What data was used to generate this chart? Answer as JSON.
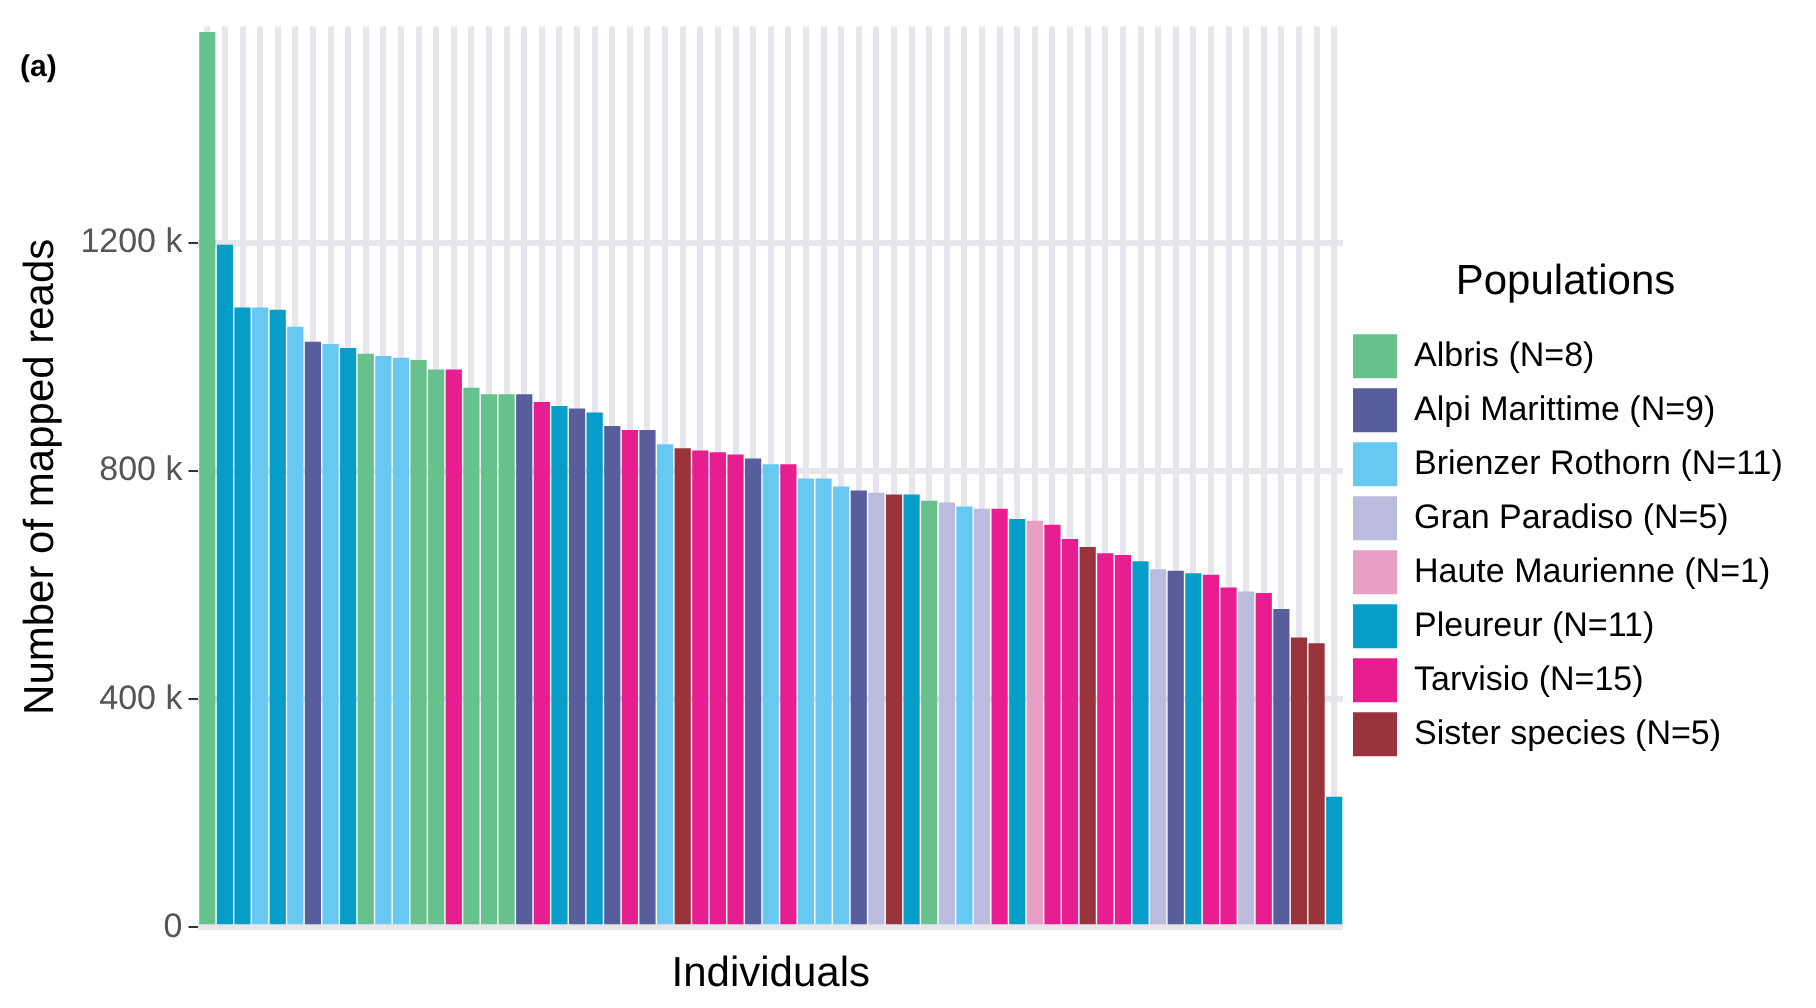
{
  "chart_data": {
    "type": "bar",
    "title": "(a)",
    "xlabel": "Individuals",
    "ylabel": "Number of mapped reads",
    "legend_title": "Populations",
    "legend": "right",
    "grid": true,
    "categories": [
      null,
      null,
      null,
      null,
      null,
      null,
      null,
      null,
      null,
      null,
      null,
      null,
      null,
      null,
      null,
      null,
      null,
      null,
      null,
      null,
      null,
      null,
      null,
      null,
      null,
      null,
      null,
      null,
      null,
      null,
      null,
      null,
      null,
      null,
      null,
      null,
      null,
      null,
      null,
      null,
      null,
      null,
      null,
      null,
      null,
      null,
      null,
      null,
      null,
      null,
      null,
      null,
      null,
      null,
      null,
      null,
      null,
      null,
      null,
      null,
      null,
      null,
      null,
      null,
      null
    ],
    "ylim": [
      0,
      1580
    ],
    "yticks": [
      {
        "value": 0,
        "label": "0"
      },
      {
        "value": 400,
        "label": "400 k"
      },
      {
        "value": 800,
        "label": "800 k"
      },
      {
        "value": 1200,
        "label": "1200 k"
      }
    ],
    "series": [
      {
        "name": "Albris (N=8)",
        "color": "#66c18c",
        "values": [
          1570,
          null,
          null,
          null,
          null,
          null,
          null,
          null,
          null,
          1006,
          null,
          null,
          995,
          978,
          null,
          946,
          935,
          935,
          null,
          null,
          null,
          null,
          null,
          null,
          null,
          null,
          null,
          null,
          null,
          null,
          null,
          null,
          null,
          null,
          null,
          null,
          null,
          null,
          null,
          null,
          null,
          748,
          null,
          null,
          null,
          null,
          null,
          null,
          null,
          null,
          null,
          null,
          null,
          null,
          null,
          null,
          null,
          null,
          null,
          null,
          null,
          null,
          null,
          null,
          null
        ]
      },
      {
        "name": "Alpi Marittime (N=9)",
        "color": "#585e9c",
        "values": [
          null,
          null,
          null,
          null,
          null,
          null,
          1027,
          null,
          null,
          null,
          null,
          null,
          null,
          null,
          null,
          null,
          null,
          null,
          935,
          null,
          null,
          910,
          null,
          879,
          null,
          872,
          null,
          null,
          null,
          null,
          null,
          822,
          null,
          null,
          null,
          null,
          null,
          766,
          null,
          null,
          null,
          null,
          null,
          null,
          null,
          null,
          null,
          null,
          null,
          null,
          null,
          null,
          null,
          null,
          null,
          625,
          null,
          null,
          null,
          null,
          null,
          558,
          null,
          null,
          null
        ]
      },
      {
        "name": "Brienzer Rothorn (N=11)",
        "color": "#67c9f2",
        "values": [
          null,
          null,
          null,
          1087,
          null,
          1053,
          null,
          1023,
          null,
          null,
          1002,
          999,
          null,
          null,
          null,
          null,
          null,
          null,
          null,
          null,
          null,
          null,
          null,
          null,
          null,
          null,
          847,
          null,
          null,
          null,
          null,
          null,
          812,
          null,
          787,
          787,
          773,
          null,
          null,
          null,
          null,
          null,
          null,
          738,
          null,
          null,
          null,
          null,
          null,
          null,
          null,
          null,
          null,
          null,
          null,
          null,
          null,
          null,
          null,
          null,
          null,
          null,
          null,
          null,
          null
        ]
      },
      {
        "name": "Gran Paradiso (N=5)",
        "color": "#bbbbdd",
        "values": [
          null,
          null,
          null,
          null,
          null,
          null,
          null,
          null,
          null,
          null,
          null,
          null,
          null,
          null,
          null,
          null,
          null,
          null,
          null,
          null,
          null,
          null,
          null,
          null,
          null,
          null,
          null,
          null,
          null,
          null,
          null,
          null,
          null,
          null,
          null,
          null,
          null,
          null,
          762,
          null,
          null,
          null,
          745,
          null,
          734,
          null,
          null,
          null,
          null,
          null,
          null,
          null,
          null,
          null,
          628,
          null,
          null,
          null,
          null,
          589,
          null,
          null,
          null,
          null,
          null
        ]
      },
      {
        "name": "Haute Maurienne (N=1)",
        "color": "#e79fc6",
        "values": [
          null,
          null,
          null,
          null,
          null,
          null,
          null,
          null,
          null,
          null,
          null,
          null,
          null,
          null,
          null,
          null,
          null,
          null,
          null,
          null,
          null,
          null,
          null,
          null,
          null,
          null,
          null,
          null,
          null,
          null,
          null,
          null,
          null,
          null,
          null,
          null,
          null,
          null,
          null,
          null,
          null,
          null,
          null,
          null,
          null,
          null,
          null,
          713,
          null,
          null,
          null,
          null,
          null,
          null,
          null,
          null,
          null,
          null,
          null,
          null,
          null,
          null,
          null,
          null,
          null
        ]
      },
      {
        "name": "Pleureur (N=11)",
        "color": "#069ec8",
        "values": [
          null,
          1197,
          1087,
          null,
          1083,
          null,
          null,
          null,
          1016,
          null,
          null,
          null,
          null,
          null,
          null,
          null,
          null,
          null,
          null,
          null,
          914,
          null,
          903,
          null,
          null,
          null,
          null,
          null,
          null,
          null,
          null,
          null,
          null,
          null,
          null,
          null,
          null,
          null,
          null,
          null,
          759,
          null,
          null,
          null,
          null,
          null,
          716,
          null,
          null,
          null,
          null,
          null,
          null,
          642,
          null,
          null,
          621,
          null,
          null,
          null,
          null,
          null,
          null,
          null,
          229
        ]
      },
      {
        "name": "Tarvisio (N=15)",
        "color": "#e81d8f",
        "values": [
          null,
          null,
          null,
          null,
          null,
          null,
          null,
          null,
          null,
          null,
          null,
          null,
          null,
          null,
          978,
          null,
          null,
          null,
          null,
          921,
          null,
          null,
          null,
          null,
          872,
          null,
          null,
          null,
          836,
          833,
          829,
          null,
          null,
          812,
          null,
          null,
          null,
          null,
          null,
          null,
          null,
          null,
          null,
          null,
          null,
          734,
          null,
          null,
          706,
          681,
          null,
          656,
          653,
          null,
          null,
          null,
          null,
          618,
          596,
          null,
          586,
          null,
          null,
          null,
          null
        ]
      },
      {
        "name": "Sister species (N=5)",
        "color": "#9a343b",
        "values": [
          null,
          null,
          null,
          null,
          null,
          null,
          null,
          null,
          null,
          null,
          null,
          null,
          null,
          null,
          null,
          null,
          null,
          null,
          null,
          null,
          null,
          null,
          null,
          null,
          null,
          null,
          null,
          840,
          null,
          null,
          null,
          null,
          null,
          null,
          null,
          null,
          null,
          null,
          null,
          759,
          null,
          null,
          null,
          null,
          null,
          null,
          null,
          null,
          null,
          null,
          667,
          null,
          null,
          null,
          null,
          null,
          null,
          null,
          null,
          null,
          null,
          null,
          508,
          498,
          null
        ]
      }
    ]
  }
}
